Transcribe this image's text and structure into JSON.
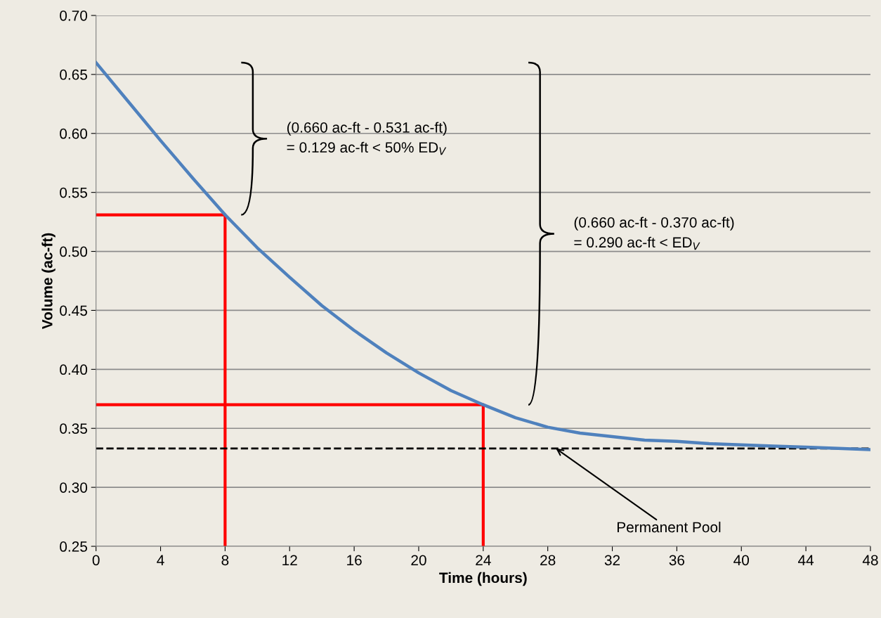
{
  "chart_data": {
    "type": "line",
    "xlabel": "Time (hours)",
    "ylabel": "Volume (ac-ft)",
    "x": [
      0,
      2,
      4,
      6,
      8,
      10,
      12,
      14,
      16,
      18,
      20,
      22,
      24,
      26,
      28,
      30,
      32,
      34,
      36,
      38,
      40,
      42,
      44,
      46,
      48
    ],
    "series": [
      {
        "color": "#4f81bd",
        "values": [
          0.66,
          0.627,
          0.594,
          0.562,
          0.531,
          0.503,
          0.478,
          0.454,
          0.433,
          0.414,
          0.397,
          0.382,
          0.37,
          0.359,
          0.351,
          0.346,
          0.343,
          0.34,
          0.339,
          0.337,
          0.336,
          0.335,
          0.334,
          0.333,
          0.332
        ]
      },
      {
        "color": "#ff0000",
        "x": [
          0,
          8,
          8
        ],
        "values": [
          0.531,
          0.531,
          0.25
        ]
      },
      {
        "color": "#ff0000",
        "x": [
          0,
          24,
          24
        ],
        "values": [
          0.37,
          0.37,
          0.25
        ]
      }
    ],
    "xlim": [
      0,
      48
    ],
    "ylim": [
      0.25,
      0.7
    ],
    "xticks": [
      0,
      4,
      8,
      12,
      16,
      20,
      24,
      28,
      32,
      36,
      40,
      44,
      48
    ],
    "yticks": [
      {
        "value": 0.25,
        "label": "0.25"
      },
      {
        "value": 0.3,
        "label": "0.30"
      },
      {
        "value": 0.35,
        "label": "0.35"
      },
      {
        "value": 0.4,
        "label": "0.40"
      },
      {
        "value": 0.45,
        "label": "0.45"
      },
      {
        "value": 0.5,
        "label": "0.50"
      },
      {
        "value": 0.55,
        "label": "0.55"
      },
      {
        "value": 0.6,
        "label": "0.60"
      },
      {
        "value": 0.65,
        "label": "0.65"
      },
      {
        "value": 0.7,
        "label": "0.70"
      }
    ],
    "grid": "y",
    "ref_lines": [
      {
        "axis": "y",
        "value": 0.333,
        "color": "#000000",
        "line_style": "dashed"
      }
    ],
    "annotations": [
      "(0.660 ac-ft - 0.531 ac-ft)\n= 0.129 ac-ft < 50% ED$_{V}$",
      "(0.660 ac-ft - 0.370 ac-ft)\n= 0.290 ac-ft < ED$_{V}$",
      {
        "text": "Permanent Pool",
        "x": 28.5,
        "y": 0.333
      }
    ]
  }
}
